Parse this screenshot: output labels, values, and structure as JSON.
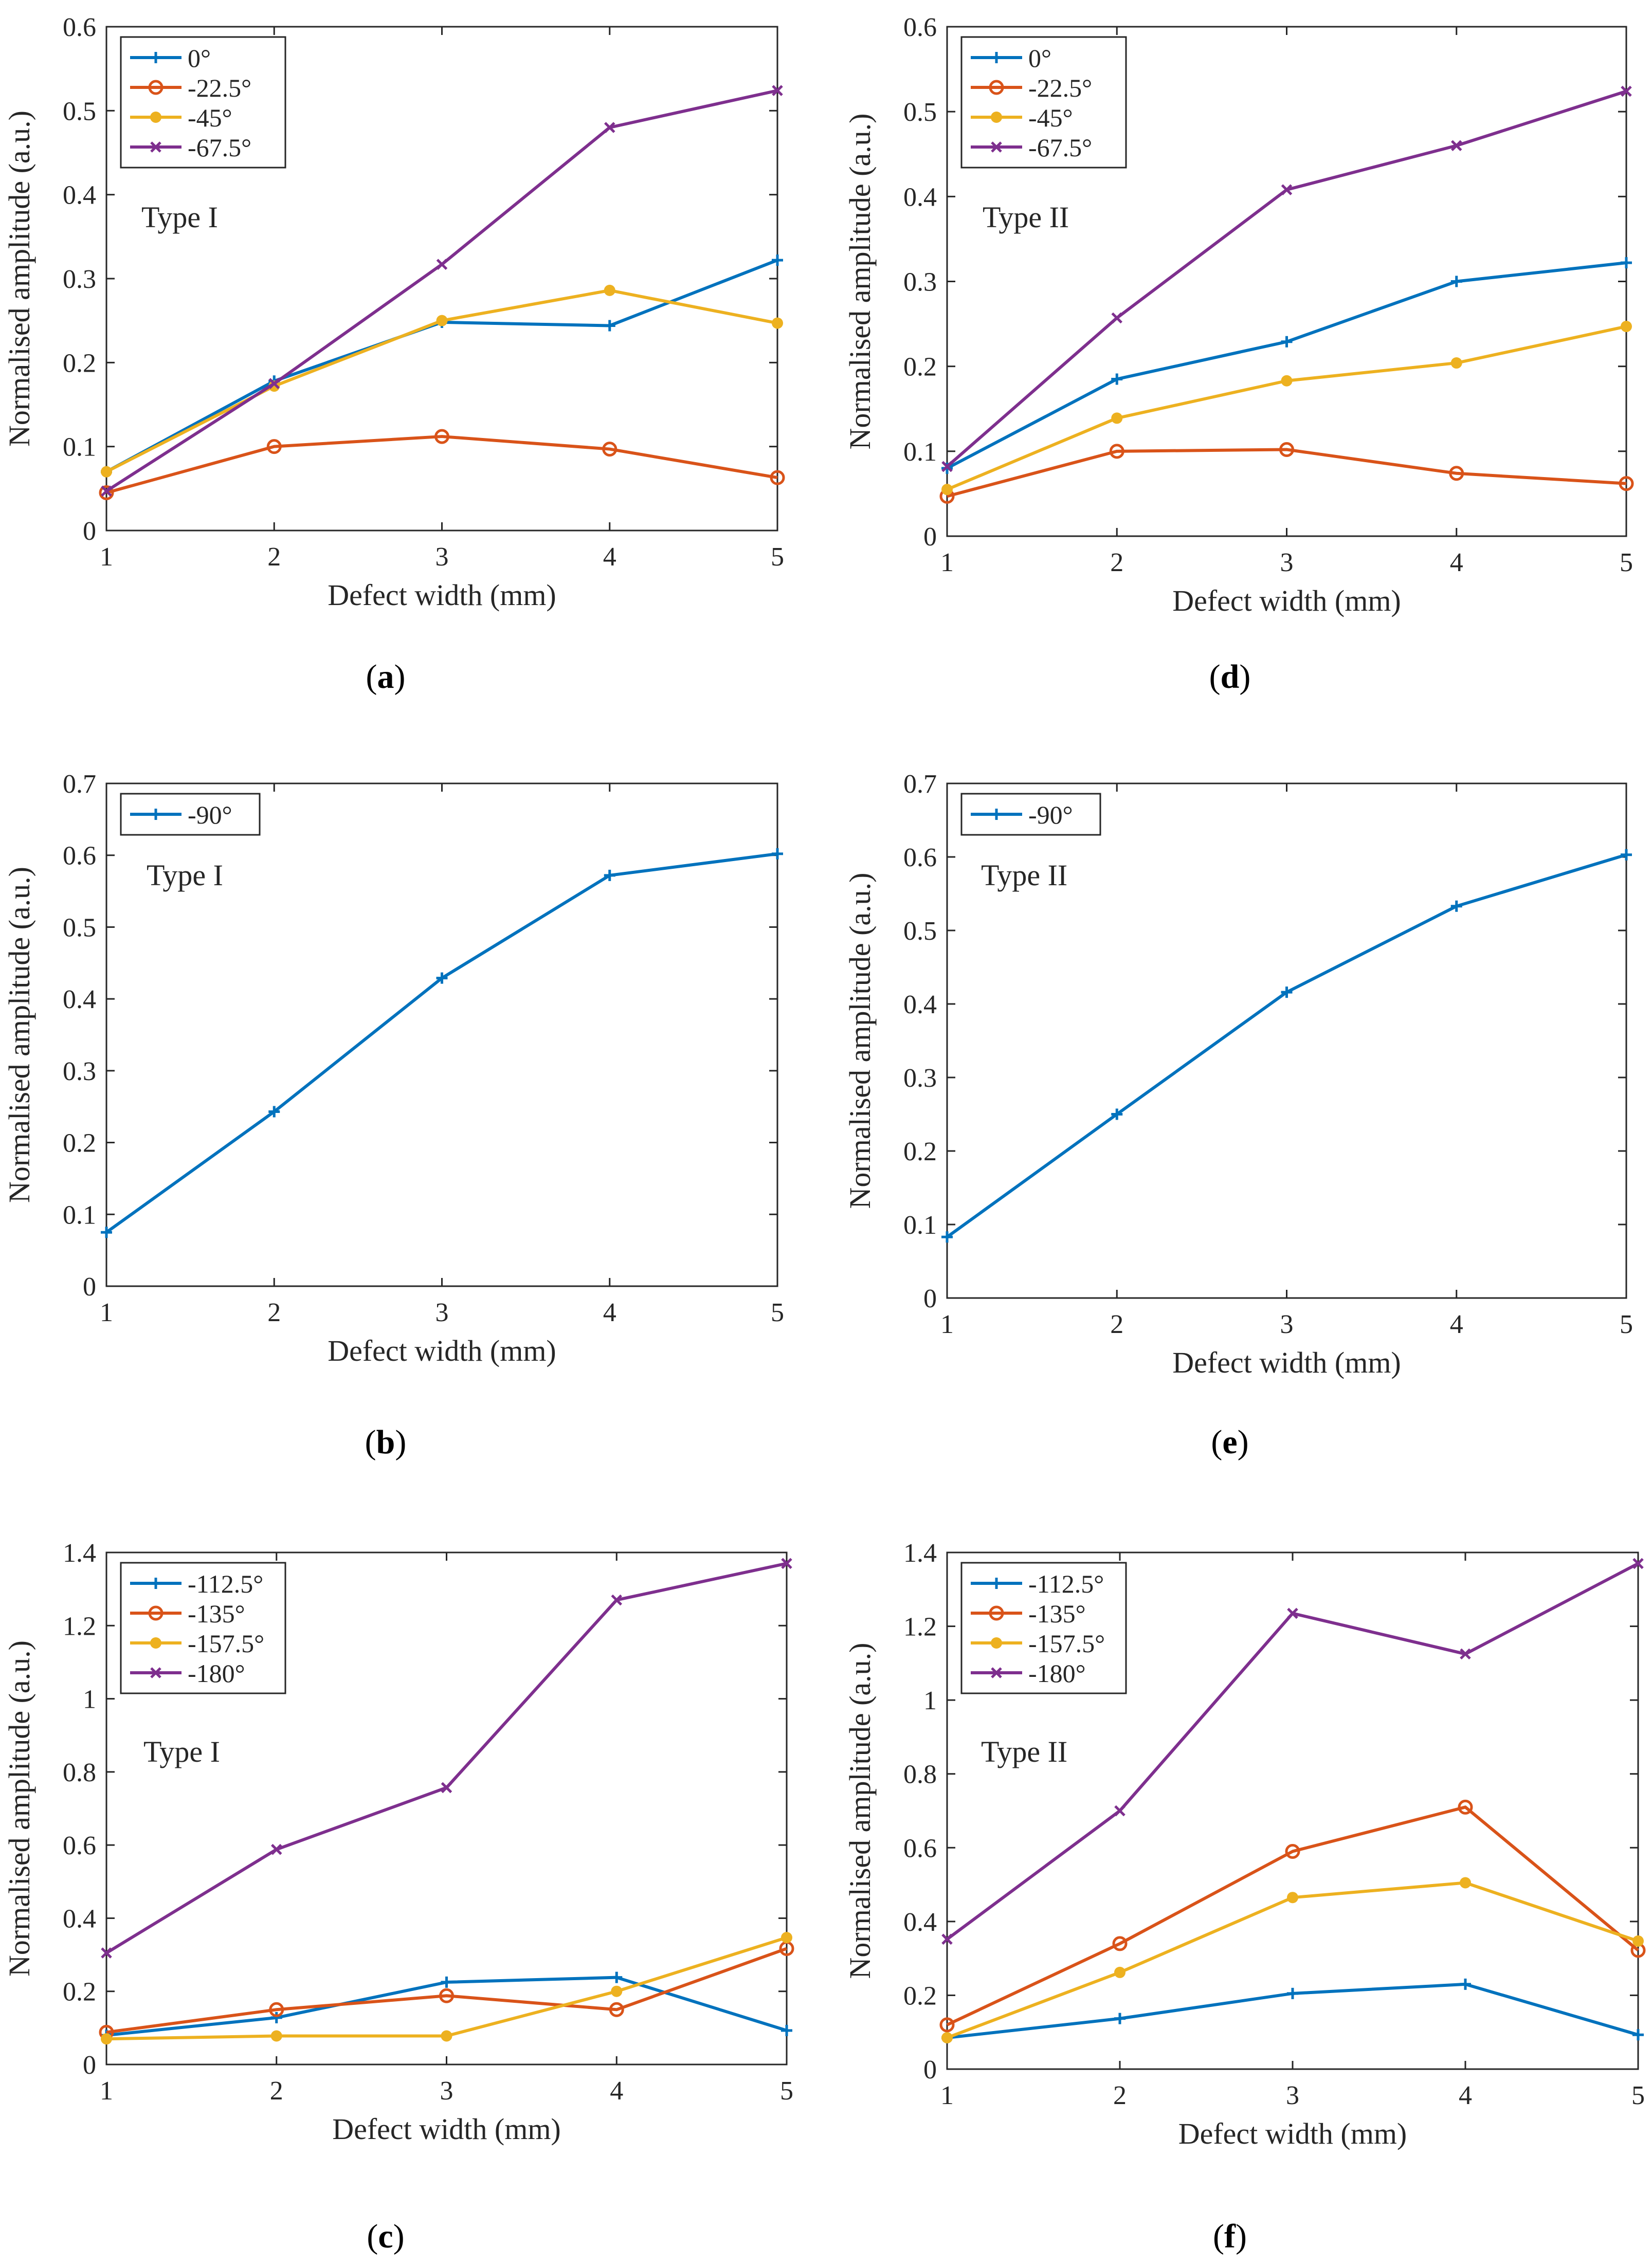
{
  "figure": {
    "panels": [
      {
        "id": "a",
        "caption": "a"
      },
      {
        "id": "d",
        "caption": "d"
      },
      {
        "id": "b",
        "caption": "b"
      },
      {
        "id": "e",
        "caption": "e"
      },
      {
        "id": "c",
        "caption": "c"
      },
      {
        "id": "f",
        "caption": "f"
      }
    ],
    "colors": {
      "blue": "#0072bd",
      "orange": "#d95319",
      "yellow": "#edb120",
      "purple": "#7e2f8e"
    },
    "marker_names": {
      "plus": "plus-marker",
      "circle": "circle-marker",
      "dot": "dot-marker",
      "cross": "cross-marker"
    }
  },
  "chart_data": [
    {
      "panel": "a",
      "type": "line",
      "annotation": "Type I",
      "xlabel": "Defect width (mm)",
      "ylabel": "Normalised amplitude (a.u.)",
      "x": [
        1,
        2,
        3,
        4,
        5
      ],
      "xlim": [
        1,
        5
      ],
      "ylim": [
        0,
        0.6
      ],
      "xticks": [
        1,
        2,
        3,
        4,
        5
      ],
      "yticks": [
        0,
        0.1,
        0.2,
        0.3,
        0.4,
        0.5,
        0.6
      ],
      "ytick_labels": [
        "0",
        "0.1",
        "0.2",
        "0.3",
        "0.4",
        "0.5",
        "0.6"
      ],
      "legend_position": "top-left",
      "series": [
        {
          "name": "0°",
          "color": "#0072bd",
          "marker": "plus",
          "values": [
            0.07,
            0.178,
            0.248,
            0.244,
            0.322
          ]
        },
        {
          "name": "-22.5°",
          "color": "#d95319",
          "marker": "circle",
          "values": [
            0.045,
            0.1,
            0.112,
            0.097,
            0.063
          ]
        },
        {
          "name": "-45°",
          "color": "#edb120",
          "marker": "dot",
          "values": [
            0.07,
            0.172,
            0.25,
            0.286,
            0.247
          ]
        },
        {
          "name": "-67.5°",
          "color": "#7e2f8e",
          "marker": "cross",
          "values": [
            0.047,
            0.175,
            0.317,
            0.48,
            0.524
          ]
        }
      ]
    },
    {
      "panel": "d",
      "type": "line",
      "annotation": "Type II",
      "xlabel": "Defect width (mm)",
      "ylabel": "Normalised amplitude (a.u.)",
      "x": [
        1,
        2,
        3,
        4,
        5
      ],
      "xlim": [
        1,
        5
      ],
      "ylim": [
        0,
        0.6
      ],
      "xticks": [
        1,
        2,
        3,
        4,
        5
      ],
      "yticks": [
        0,
        0.1,
        0.2,
        0.3,
        0.4,
        0.5,
        0.6
      ],
      "ytick_labels": [
        "0",
        "0.1",
        "0.2",
        "0.3",
        "0.4",
        "0.5",
        "0.6"
      ],
      "legend_position": "top-left",
      "series": [
        {
          "name": "0°",
          "color": "#0072bd",
          "marker": "plus",
          "values": [
            0.08,
            0.185,
            0.229,
            0.3,
            0.322
          ]
        },
        {
          "name": "-22.5°",
          "color": "#d95319",
          "marker": "circle",
          "values": [
            0.047,
            0.1,
            0.102,
            0.074,
            0.062
          ]
        },
        {
          "name": "-45°",
          "color": "#edb120",
          "marker": "dot",
          "values": [
            0.055,
            0.139,
            0.183,
            0.204,
            0.247
          ]
        },
        {
          "name": "-67.5°",
          "color": "#7e2f8e",
          "marker": "cross",
          "values": [
            0.082,
            0.257,
            0.408,
            0.46,
            0.524
          ]
        }
      ]
    },
    {
      "panel": "b",
      "type": "line",
      "annotation": "Type I",
      "xlabel": "Defect width (mm)",
      "ylabel": "Normalised amplitude (a.u.)",
      "x": [
        1,
        2,
        3,
        4,
        5
      ],
      "xlim": [
        1,
        5
      ],
      "ylim": [
        0,
        0.7
      ],
      "xticks": [
        1,
        2,
        3,
        4,
        5
      ],
      "yticks": [
        0,
        0.1,
        0.2,
        0.3,
        0.4,
        0.5,
        0.6,
        0.7
      ],
      "ytick_labels": [
        "0",
        "0.1",
        "0.2",
        "0.3",
        "0.4",
        "0.5",
        "0.6",
        "0.7"
      ],
      "legend_position": "top-left",
      "series": [
        {
          "name": "-90°",
          "color": "#0072bd",
          "marker": "plus",
          "values": [
            0.075,
            0.243,
            0.429,
            0.572,
            0.602
          ]
        }
      ]
    },
    {
      "panel": "e",
      "type": "line",
      "annotation": "Type II",
      "xlabel": "Defect width (mm)",
      "ylabel": "Normalised amplitude (a.u.)",
      "x": [
        1,
        2,
        3,
        4,
        5
      ],
      "xlim": [
        1,
        5
      ],
      "ylim": [
        0,
        0.7
      ],
      "xticks": [
        1,
        2,
        3,
        4,
        5
      ],
      "yticks": [
        0,
        0.1,
        0.2,
        0.3,
        0.4,
        0.5,
        0.6,
        0.7
      ],
      "ytick_labels": [
        "0",
        "0.1",
        "0.2",
        "0.3",
        "0.4",
        "0.5",
        "0.6",
        "0.7"
      ],
      "legend_position": "top-left",
      "series": [
        {
          "name": "-90°",
          "color": "#0072bd",
          "marker": "plus",
          "values": [
            0.083,
            0.25,
            0.416,
            0.533,
            0.603
          ]
        }
      ]
    },
    {
      "panel": "c",
      "type": "line",
      "annotation": "Type I",
      "xlabel": "Defect width (mm)",
      "ylabel": "Normalised amplitude (a.u.)",
      "x": [
        1,
        2,
        3,
        4,
        5
      ],
      "xlim": [
        1,
        5
      ],
      "ylim": [
        0,
        1.4
      ],
      "xticks": [
        1,
        2,
        3,
        4,
        5
      ],
      "yticks": [
        0,
        0.2,
        0.4,
        0.6,
        0.8,
        1.0,
        1.2,
        1.4
      ],
      "ytick_labels": [
        "0",
        "0.2",
        "0.4",
        "0.6",
        "0.8",
        "1",
        "1.2",
        "1.4"
      ],
      "legend_position": "top-left",
      "series": [
        {
          "name": "-112.5°",
          "color": "#0072bd",
          "marker": "plus",
          "values": [
            0.08,
            0.128,
            0.225,
            0.238,
            0.093
          ]
        },
        {
          "name": "-135°",
          "color": "#d95319",
          "marker": "circle",
          "values": [
            0.088,
            0.15,
            0.188,
            0.15,
            0.317
          ]
        },
        {
          "name": "-157.5°",
          "color": "#edb120",
          "marker": "dot",
          "values": [
            0.07,
            0.078,
            0.078,
            0.2,
            0.347
          ]
        },
        {
          "name": "-180°",
          "color": "#7e2f8e",
          "marker": "cross",
          "values": [
            0.305,
            0.588,
            0.757,
            1.27,
            1.37
          ]
        }
      ]
    },
    {
      "panel": "f",
      "type": "line",
      "annotation": "Type II",
      "xlabel": "Defect width (mm)",
      "ylabel": "Normalised amplitude (a.u.)",
      "x": [
        1,
        2,
        3,
        4,
        5
      ],
      "xlim": [
        1,
        5
      ],
      "ylim": [
        0,
        1.4
      ],
      "xticks": [
        1,
        2,
        3,
        4,
        5
      ],
      "yticks": [
        0,
        0.2,
        0.4,
        0.6,
        0.8,
        1.0,
        1.2,
        1.4
      ],
      "ytick_labels": [
        "0",
        "0.2",
        "0.4",
        "0.6",
        "0.8",
        "1",
        "1.2",
        "1.4"
      ],
      "legend_position": "top-left",
      "series": [
        {
          "name": "-112.5°",
          "color": "#0072bd",
          "marker": "plus",
          "values": [
            0.085,
            0.137,
            0.205,
            0.23,
            0.093
          ]
        },
        {
          "name": "-135°",
          "color": "#d95319",
          "marker": "circle",
          "values": [
            0.12,
            0.34,
            0.59,
            0.71,
            0.322
          ]
        },
        {
          "name": "-157.5°",
          "color": "#edb120",
          "marker": "dot",
          "values": [
            0.085,
            0.262,
            0.465,
            0.505,
            0.347
          ]
        },
        {
          "name": "-180°",
          "color": "#7e2f8e",
          "marker": "cross",
          "values": [
            0.352,
            0.7,
            1.235,
            1.125,
            1.37
          ]
        }
      ]
    }
  ]
}
